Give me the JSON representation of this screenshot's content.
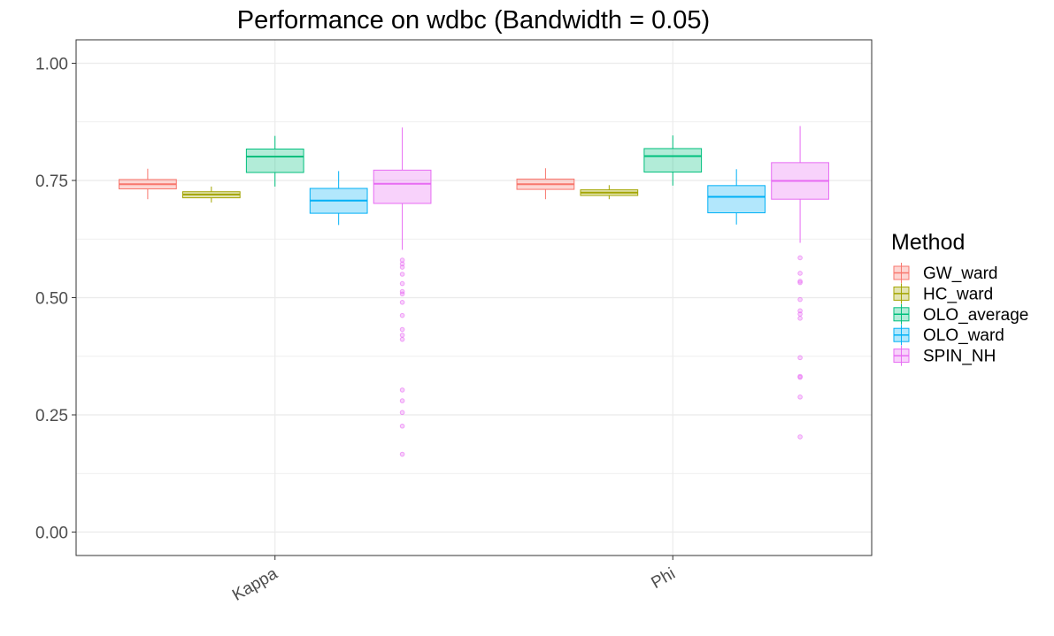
{
  "chart_data": {
    "type": "boxplot",
    "title": "Performance on wdbc (Bandwidth = 0.05)",
    "xlabel": "",
    "ylabel": "",
    "categories": [
      "Kappa",
      "Phi"
    ],
    "ylim": [
      -0.05,
      1.05
    ],
    "yticks": [
      0.0,
      0.25,
      0.5,
      0.75,
      1.0
    ],
    "ytick_labels": [
      "0.00",
      "0.25",
      "0.50",
      "0.75",
      "1.00"
    ],
    "grid": true,
    "legend": {
      "title": "Method",
      "position": "right"
    },
    "series": [
      {
        "name": "GW_ward",
        "color": "#F8766D",
        "boxes": [
          {
            "category": "Kappa",
            "whisker_low": 0.71,
            "q1": 0.732,
            "median": 0.742,
            "q3": 0.752,
            "whisker_high": 0.775,
            "outliers": []
          },
          {
            "category": "Phi",
            "whisker_low": 0.71,
            "q1": 0.731,
            "median": 0.742,
            "q3": 0.753,
            "whisker_high": 0.776,
            "outliers": []
          }
        ]
      },
      {
        "name": "HC_ward",
        "color": "#A3A500",
        "boxes": [
          {
            "category": "Kappa",
            "whisker_low": 0.703,
            "q1": 0.713,
            "median": 0.72,
            "q3": 0.726,
            "whisker_high": 0.737,
            "outliers": []
          },
          {
            "category": "Phi",
            "whisker_low": 0.71,
            "q1": 0.718,
            "median": 0.724,
            "q3": 0.73,
            "whisker_high": 0.74,
            "outliers": []
          }
        ]
      },
      {
        "name": "OLO_average",
        "color": "#00BF7D",
        "boxes": [
          {
            "category": "Kappa",
            "whisker_low": 0.737,
            "q1": 0.767,
            "median": 0.801,
            "q3": 0.817,
            "whisker_high": 0.845,
            "outliers": []
          },
          {
            "category": "Phi",
            "whisker_low": 0.739,
            "q1": 0.768,
            "median": 0.802,
            "q3": 0.818,
            "whisker_high": 0.846,
            "outliers": []
          }
        ]
      },
      {
        "name": "OLO_ward",
        "color": "#00B0F6",
        "boxes": [
          {
            "category": "Kappa",
            "whisker_low": 0.655,
            "q1": 0.68,
            "median": 0.707,
            "q3": 0.733,
            "whisker_high": 0.77,
            "outliers": []
          },
          {
            "category": "Phi",
            "whisker_low": 0.656,
            "q1": 0.681,
            "median": 0.715,
            "q3": 0.739,
            "whisker_high": 0.774,
            "outliers": []
          }
        ]
      },
      {
        "name": "SPIN_NH",
        "color": "#E76BF3",
        "boxes": [
          {
            "category": "Kappa",
            "whisker_low": 0.602,
            "q1": 0.701,
            "median": 0.743,
            "q3": 0.772,
            "whisker_high": 0.863,
            "outliers": [
              0.58,
              0.572,
              0.565,
              0.55,
              0.53,
              0.513,
              0.508,
              0.49,
              0.462,
              0.432,
              0.42,
              0.411,
              0.303,
              0.28,
              0.255,
              0.226,
              0.166
            ]
          },
          {
            "category": "Phi",
            "whisker_low": 0.617,
            "q1": 0.71,
            "median": 0.749,
            "q3": 0.788,
            "whisker_high": 0.866,
            "outliers": [
              0.585,
              0.552,
              0.535,
              0.532,
              0.496,
              0.472,
              0.465,
              0.456,
              0.372,
              0.332,
              0.33,
              0.288,
              0.203
            ]
          }
        ]
      }
    ]
  }
}
